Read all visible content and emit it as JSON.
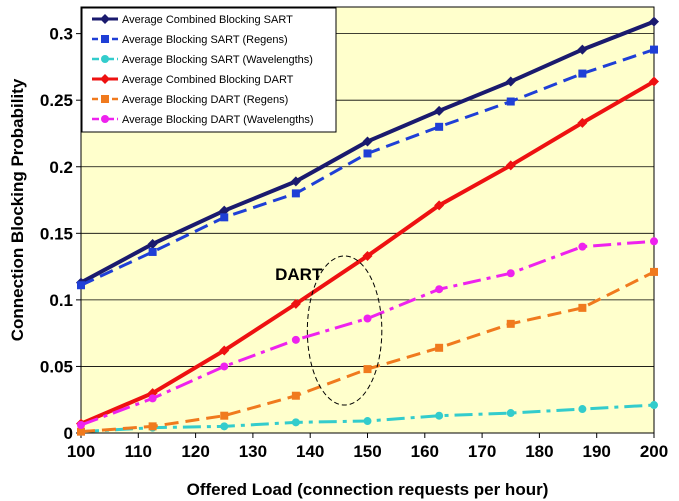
{
  "chart_data": {
    "type": "line",
    "title": "",
    "xlabel": "Offered Load (connection requests per hour)",
    "ylabel": "Connection Blocking Probability",
    "xlim": [
      100,
      200
    ],
    "ylim": [
      0,
      0.3
    ],
    "x_ticks": [
      "100",
      "110",
      "120",
      "130",
      "140",
      "150",
      "160",
      "170",
      "180",
      "190",
      "200"
    ],
    "y_ticks": [
      "0",
      "0.05",
      "0.1",
      "0.15",
      "0.2",
      "0.25",
      "0.3"
    ],
    "grid": "horizontal",
    "legend_position": "top-left",
    "plot_background": "#ffffcc",
    "x": [
      100,
      112.5,
      125,
      137.5,
      150,
      162.5,
      175,
      187.5,
      200
    ],
    "series": [
      {
        "name": "Average Combined Blocking SART",
        "color": "#1a1a6e",
        "dash": "solid",
        "marker": "diamond",
        "values": [
          0.113,
          0.142,
          0.167,
          0.189,
          0.219,
          0.242,
          0.264,
          0.288,
          0.309
        ]
      },
      {
        "name": "Average Blocking SART (Regens)",
        "color": "#1f3fd6",
        "dash": "dash",
        "marker": "square",
        "values": [
          0.111,
          0.136,
          0.162,
          0.18,
          0.21,
          0.23,
          0.249,
          0.27,
          0.288
        ]
      },
      {
        "name": "Average Blocking SART (Wavelengths)",
        "color": "#33cccc",
        "dash": "dashdot",
        "marker": "circle",
        "values": [
          0.001,
          0.004,
          0.005,
          0.008,
          0.009,
          0.013,
          0.015,
          0.018,
          0.021
        ]
      },
      {
        "name": "Average Combined Blocking DART",
        "color": "#ee1111",
        "dash": "solid",
        "marker": "diamond",
        "values": [
          0.007,
          0.03,
          0.062,
          0.097,
          0.133,
          0.171,
          0.201,
          0.233,
          0.264
        ]
      },
      {
        "name": "Average Blocking DART (Regens)",
        "color": "#f07a1e",
        "dash": "dash",
        "marker": "square",
        "values": [
          0.001,
          0.005,
          0.013,
          0.028,
          0.048,
          0.064,
          0.082,
          0.094,
          0.121
        ]
      },
      {
        "name": "Average Blocking DART (Wavelengths)",
        "color": "#ee22ee",
        "dash": "dashdot",
        "marker": "circle",
        "values": [
          0.006,
          0.026,
          0.05,
          0.07,
          0.086,
          0.108,
          0.12,
          0.14,
          0.144
        ]
      }
    ],
    "annotations": [
      {
        "text": "DART",
        "x": 138,
        "y": 0.115
      },
      {
        "type": "ellipse",
        "cx": 146,
        "cy": 0.077,
        "rx_data": 6.5,
        "ry_data": 0.056
      }
    ]
  }
}
